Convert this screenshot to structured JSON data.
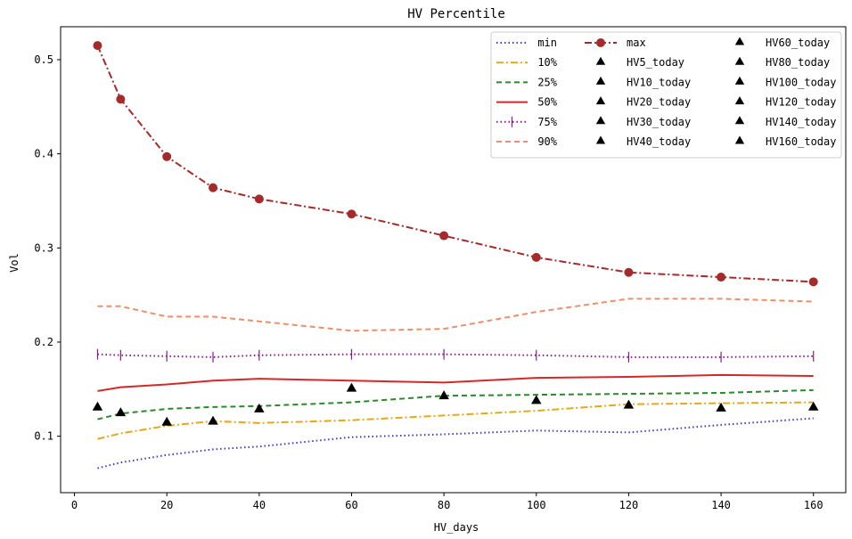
{
  "chart_data": {
    "type": "line",
    "title": "HV Percentile",
    "xlabel": "HV_days",
    "ylabel": "Vol",
    "x": [
      5,
      10,
      20,
      30,
      40,
      60,
      80,
      100,
      120,
      140,
      160
    ],
    "xlim": [
      -3,
      167
    ],
    "ylim": [
      0.04,
      0.535
    ],
    "xticks": [
      0,
      20,
      40,
      60,
      80,
      100,
      120,
      140,
      160
    ],
    "yticks": [
      0.1,
      0.2,
      0.3,
      0.4,
      0.5
    ],
    "grid": false,
    "legend_position": "top-right",
    "series": [
      {
        "name": "min",
        "color": "#3a3acf",
        "style": "dotted",
        "marker": "none",
        "values": [
          0.066,
          0.072,
          0.08,
          0.086,
          0.089,
          0.099,
          0.102,
          0.106,
          0.104,
          0.112,
          0.119
        ]
      },
      {
        "name": "10%",
        "color": "#e6a817",
        "style": "dashdot",
        "marker": "none",
        "values": [
          0.097,
          0.103,
          0.111,
          0.116,
          0.114,
          0.117,
          0.122,
          0.127,
          0.134,
          0.135,
          0.136
        ]
      },
      {
        "name": "25%",
        "color": "#2b8a2b",
        "style": "dashed",
        "marker": "none",
        "values": [
          0.118,
          0.124,
          0.129,
          0.131,
          0.132,
          0.136,
          0.143,
          0.144,
          0.145,
          0.146,
          0.149
        ]
      },
      {
        "name": "50%",
        "color": "#d62728",
        "style": "solid",
        "marker": "none",
        "values": [
          0.148,
          0.152,
          0.155,
          0.159,
          0.161,
          0.159,
          0.157,
          0.162,
          0.163,
          0.165,
          0.164
        ]
      },
      {
        "name": "75%",
        "color": "#8b1a89",
        "style": "dotted",
        "marker": "vline",
        "values": [
          0.187,
          0.186,
          0.185,
          0.184,
          0.186,
          0.187,
          0.187,
          0.186,
          0.184,
          0.184,
          0.185
        ]
      },
      {
        "name": "90%",
        "color": "#f08e6a",
        "style": "dashed",
        "marker": "none",
        "values": [
          0.238,
          0.238,
          0.227,
          0.227,
          0.222,
          0.212,
          0.214,
          0.232,
          0.246,
          0.246,
          0.243
        ]
      },
      {
        "name": "max",
        "color": "#a52a2a",
        "style": "dashdot",
        "marker": "circle",
        "values": [
          0.515,
          0.458,
          0.397,
          0.364,
          0.352,
          0.336,
          0.313,
          0.29,
          0.274,
          0.269,
          0.264
        ]
      }
    ],
    "today_points": [
      {
        "name": "HV5_today",
        "x": 5,
        "y": 0.132
      },
      {
        "name": "HV10_today",
        "x": 10,
        "y": 0.126
      },
      {
        "name": "HV20_today",
        "x": 20,
        "y": 0.116
      },
      {
        "name": "HV30_today",
        "x": 30,
        "y": 0.117
      },
      {
        "name": "HV40_today",
        "x": 40,
        "y": 0.13
      },
      {
        "name": "HV60_today",
        "x": 60,
        "y": 0.152
      },
      {
        "name": "HV80_today",
        "x": 80,
        "y": 0.144
      },
      {
        "name": "HV100_today",
        "x": 100,
        "y": 0.139
      },
      {
        "name": "HV120_today",
        "x": 120,
        "y": 0.134
      },
      {
        "name": "HV140_today",
        "x": 140,
        "y": 0.131
      },
      {
        "name": "HV160_today",
        "x": 160,
        "y": 0.132
      }
    ],
    "today_marker": {
      "shape": "triangle",
      "color": "#000000"
    }
  }
}
